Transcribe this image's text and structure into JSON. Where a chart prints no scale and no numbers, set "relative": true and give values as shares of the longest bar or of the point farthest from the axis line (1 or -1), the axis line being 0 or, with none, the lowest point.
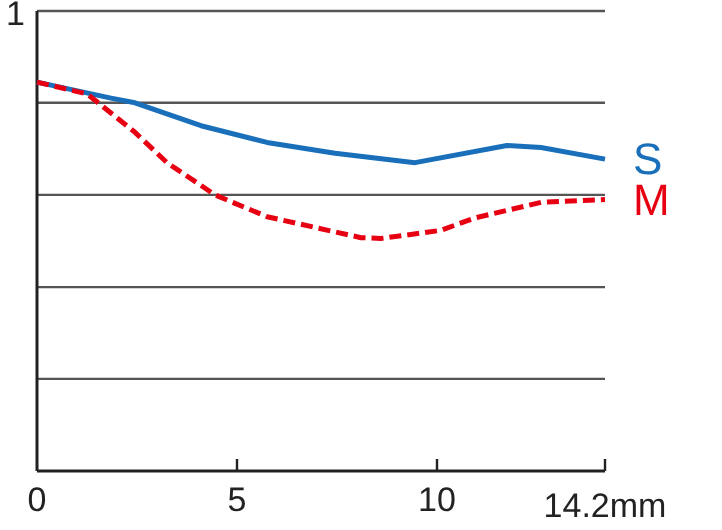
{
  "chart_data": {
    "type": "line",
    "relative": true,
    "xlim": [
      0,
      14.2
    ],
    "xticks": [
      0,
      5,
      10,
      {
        "value": 14.2,
        "label": "14.2mm"
      }
    ],
    "annotations": [
      "1"
    ],
    "ref_lines": [
      {
        "axis": "y",
        "value": 0.237,
        "color": "#555555"
      },
      {
        "axis": "y",
        "value": 0.473,
        "color": "#555555"
      },
      {
        "axis": "y",
        "value": 0.71,
        "color": "#555555"
      },
      {
        "axis": "y",
        "value": 0.947,
        "color": "#555555"
      },
      {
        "axis": "y",
        "value": 1.183,
        "color": "#555555"
      }
    ],
    "legend": false,
    "series": [
      {
        "name": "S",
        "color": "#1a6fba",
        "line_style": "solid",
        "x": [
          0,
          1.85,
          2.45,
          4.1,
          5.75,
          7.45,
          9.45,
          11.75,
          12.6,
          14.2
        ],
        "values": [
          1,
          0.959,
          0.947,
          0.888,
          0.845,
          0.817,
          0.793,
          0.837,
          0.832,
          0.802
        ]
      },
      {
        "name": "M",
        "color": "#e60012",
        "line_style": "dashed",
        "x": [
          0,
          1.25,
          2.45,
          3.25,
          4.45,
          5.75,
          8.1,
          8.6,
          10.1,
          10.95,
          12.6,
          14.2
        ],
        "values": [
          1,
          0.97,
          0.871,
          0.793,
          0.71,
          0.654,
          0.6,
          0.598,
          0.619,
          0.651,
          0.691,
          0.698
        ]
      }
    ]
  }
}
